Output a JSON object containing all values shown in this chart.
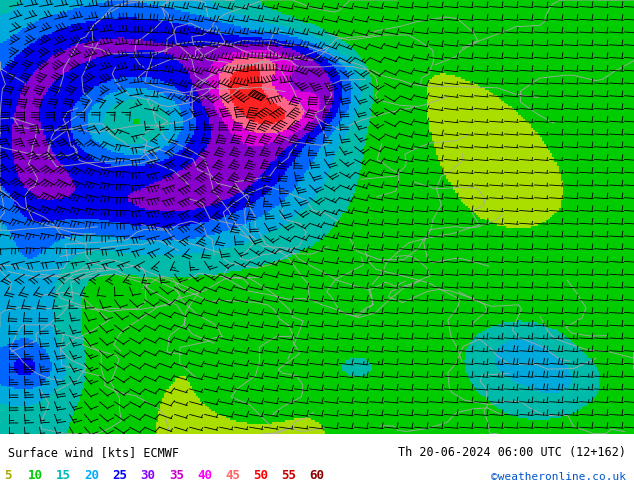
{
  "title_left": "Surface wind [kts] ECMWF",
  "title_right": "Th 20-06-2024 06:00 UTC (12+162)",
  "credit": "©weatheronline.co.uk",
  "legend_values": [
    5,
    10,
    15,
    20,
    25,
    30,
    35,
    40,
    45,
    50,
    55,
    60
  ],
  "legend_colors": [
    "#aaaa00",
    "#00cc00",
    "#00bbbb",
    "#00aaff",
    "#0000ff",
    "#8800ff",
    "#cc00cc",
    "#ff00ff",
    "#ff6666",
    "#ff0000",
    "#cc0000",
    "#880000"
  ],
  "wind_levels": [
    0,
    5,
    10,
    15,
    20,
    25,
    30,
    35,
    40,
    45,
    50,
    55,
    60
  ],
  "colormap_colors": [
    "#ffff44",
    "#aadd00",
    "#00cc00",
    "#00bbaa",
    "#00aadd",
    "#0066ff",
    "#0000ee",
    "#8800cc",
    "#dd00dd",
    "#ff6688",
    "#ff2222",
    "#cc0000",
    "#880000"
  ],
  "bg_color": "#ffffff",
  "figsize": [
    6.34,
    4.9
  ],
  "dpi": 100
}
